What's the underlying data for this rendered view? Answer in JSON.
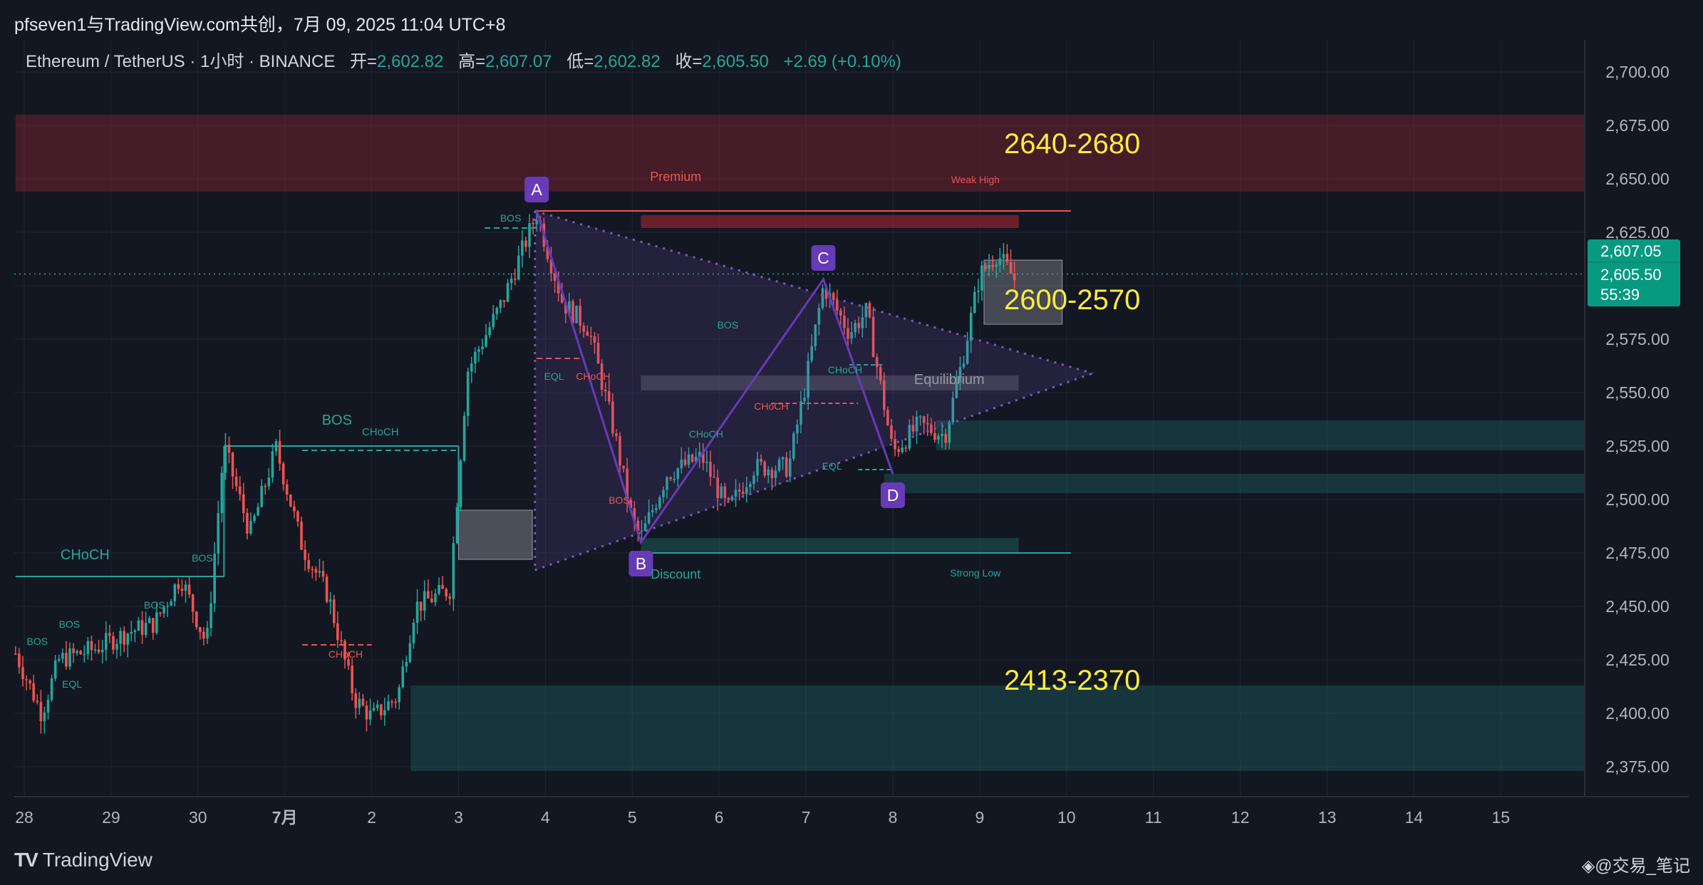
{
  "header": {
    "attribution": "pfseven1与TradingView.com共创，7月 09, 2025 11:04 UTC+8"
  },
  "legend": {
    "symbol": "Ethereum / TetherUS · 1小时 · BINANCE",
    "open_label": "开=",
    "open": "2,602.82",
    "high_label": "高=",
    "high": "2,607.07",
    "low_label": "低=",
    "low": "2,602.82",
    "close_label": "收=",
    "close": "2,605.50",
    "change": "+2.69 (+0.10%)"
  },
  "price_tags": {
    "high": "2,607.05",
    "last": "2,605.50",
    "countdown": "55:39"
  },
  "footer": {
    "logo_mark": "TV",
    "logo_text": "TradingView",
    "watermark": "◈@交易_笔记"
  },
  "colors": {
    "background": "#131722",
    "up": "#26a69a",
    "down": "#ef5350",
    "pattern": "#7e57c2",
    "zone_label": "#ffeb3b",
    "grid": "#1f2433"
  },
  "chart_data": {
    "type": "candlestick",
    "ylim": [
      2362,
      2708
    ],
    "y_ticks": [
      "2,700.00",
      "2,675.00",
      "2,650.00",
      "2,625.00",
      "2,600.00",
      "2,575.00",
      "2,550.00",
      "2,525.00",
      "2,500.00",
      "2,475.00",
      "2,450.00",
      "2,425.00",
      "2,400.00",
      "2,375.00"
    ],
    "x_ticks": [
      "28",
      "29",
      "30",
      "7月",
      "2",
      "3",
      "4",
      "5",
      "6",
      "7",
      "8",
      "9",
      "10",
      "11",
      "12",
      "13",
      "14",
      "15"
    ],
    "price_path": [
      [
        27.9,
        2428
      ],
      [
        28.2,
        2400
      ],
      [
        28.4,
        2425
      ],
      [
        28.8,
        2430
      ],
      [
        29.2,
        2438
      ],
      [
        29.5,
        2442
      ],
      [
        29.8,
        2464
      ],
      [
        30.1,
        2432
      ],
      [
        30.3,
        2525
      ],
      [
        30.6,
        2484
      ],
      [
        30.9,
        2524
      ],
      [
        31.2,
        2478
      ],
      [
        31.5,
        2455
      ],
      [
        31.8,
        2407
      ],
      [
        32.0,
        2398
      ],
      [
        32.3,
        2408
      ],
      [
        32.5,
        2450
      ],
      [
        32.9,
        2458
      ],
      [
        33.1,
        2560
      ],
      [
        33.5,
        2592
      ],
      [
        33.9,
        2634
      ],
      [
        34.2,
        2592
      ],
      [
        34.5,
        2580
      ],
      [
        34.8,
        2530
      ],
      [
        35.0,
        2490
      ],
      [
        35.1,
        2482
      ],
      [
        35.4,
        2512
      ],
      [
        35.8,
        2520
      ],
      [
        36.1,
        2495
      ],
      [
        36.4,
        2515
      ],
      [
        36.8,
        2515
      ],
      [
        37.0,
        2555
      ],
      [
        37.2,
        2600
      ],
      [
        37.5,
        2578
      ],
      [
        37.7,
        2588
      ],
      [
        38.0,
        2522
      ],
      [
        38.3,
        2535
      ],
      [
        38.6,
        2530
      ],
      [
        38.8,
        2565
      ],
      [
        39.0,
        2605
      ],
      [
        39.2,
        2615
      ],
      [
        39.4,
        2603
      ]
    ],
    "x_axis_note": "x positions count days from June 28 (28 = Jun 28, 31 = Jul 1 labeled 7月)",
    "pattern_points": [
      {
        "label": "A",
        "x": 33.9,
        "y": 2635
      },
      {
        "label": "B",
        "x": 35.1,
        "y": 2480
      },
      {
        "label": "C",
        "x": 37.2,
        "y": 2603
      },
      {
        "label": "D",
        "x": 38.0,
        "y": 2512
      }
    ],
    "triangle_apex": {
      "x": 40.3,
      "y": 2559
    },
    "zones": [
      {
        "label": "2640-2680",
        "low": 2644,
        "high": 2680,
        "from": 27.9,
        "to": 46,
        "kind": "supply"
      },
      {
        "label": "2600-2570",
        "low": 2582,
        "high": 2612,
        "from": 39.05,
        "to": 39.95,
        "kind": "gray"
      },
      {
        "label": "2413-2370",
        "low": 2373,
        "high": 2413,
        "from": 32.45,
        "to": 46,
        "kind": "demand"
      },
      {
        "label": "",
        "low": 2523,
        "high": 2537,
        "from": 38.5,
        "to": 46,
        "kind": "demand"
      },
      {
        "label": "",
        "low": 2503,
        "high": 2512,
        "from": 37.9,
        "to": 46,
        "kind": "demand"
      }
    ],
    "annotations": [
      {
        "text": "Premium",
        "x": 35.5,
        "y": 2649,
        "color": "down",
        "size": 18
      },
      {
        "text": "Weak High",
        "x": 38.95,
        "y": 2648,
        "color": "down",
        "size": 14
      },
      {
        "text": "Equilibrium",
        "x": 38.65,
        "y": 2554,
        "color": "gray",
        "size": 20
      },
      {
        "text": "Discount",
        "x": 35.5,
        "y": 2463,
        "color": "up",
        "size": 18
      },
      {
        "text": "Strong Low",
        "x": 38.95,
        "y": 2464,
        "color": "up",
        "size": 14
      },
      {
        "text": "BOS",
        "x": 31.6,
        "y": 2535,
        "color": "up",
        "size": 20
      },
      {
        "text": "CHoCH",
        "x": 32.1,
        "y": 2530,
        "color": "up",
        "size": 15
      },
      {
        "text": "CHoCH",
        "x": 28.7,
        "y": 2472,
        "color": "up",
        "size": 20
      },
      {
        "text": "BOS",
        "x": 30.05,
        "y": 2471,
        "color": "up",
        "size": 14
      },
      {
        "text": "BOS",
        "x": 29.5,
        "y": 2449,
        "color": "up",
        "size": 14
      },
      {
        "text": "BOS",
        "x": 28.52,
        "y": 2440,
        "color": "up",
        "size": 14
      },
      {
        "text": "BOS",
        "x": 28.15,
        "y": 2432,
        "color": "up",
        "size": 14
      },
      {
        "text": "EQL",
        "x": 28.55,
        "y": 2412,
        "color": "up",
        "size": 14
      },
      {
        "text": "CHoCH",
        "x": 31.7,
        "y": 2426,
        "color": "down",
        "size": 14
      },
      {
        "text": "BOS",
        "x": 33.6,
        "y": 2630,
        "color": "up",
        "size": 14
      },
      {
        "text": "EQL",
        "x": 34.1,
        "y": 2556,
        "color": "up",
        "size": 14
      },
      {
        "text": "CHoCH",
        "x": 34.55,
        "y": 2556,
        "color": "down",
        "size": 14
      },
      {
        "text": "BOS",
        "x": 36.1,
        "y": 2580,
        "color": "up",
        "size": 14
      },
      {
        "text": "CHoCH",
        "x": 35.85,
        "y": 2529,
        "color": "up",
        "size": 14
      },
      {
        "text": "BOS",
        "x": 34.85,
        "y": 2498,
        "color": "down",
        "size": 14
      },
      {
        "text": "CHoCH",
        "x": 36.6,
        "y": 2542,
        "color": "down",
        "size": 14
      },
      {
        "text": "CHoCH",
        "x": 37.45,
        "y": 2559,
        "color": "up",
        "size": 14
      },
      {
        "text": "EQL",
        "x": 37.3,
        "y": 2514,
        "color": "up",
        "size": 14
      },
      {
        "text": "2640-2680",
        "x": 39.28,
        "y": 2662,
        "color": "zone_label",
        "size": 40
      },
      {
        "text": "2600-2570",
        "x": 39.28,
        "y": 2589,
        "color": "zone_label",
        "size": 40
      },
      {
        "text": "2413-2370",
        "x": 39.28,
        "y": 2411,
        "color": "zone_label",
        "size": 40
      }
    ]
  }
}
